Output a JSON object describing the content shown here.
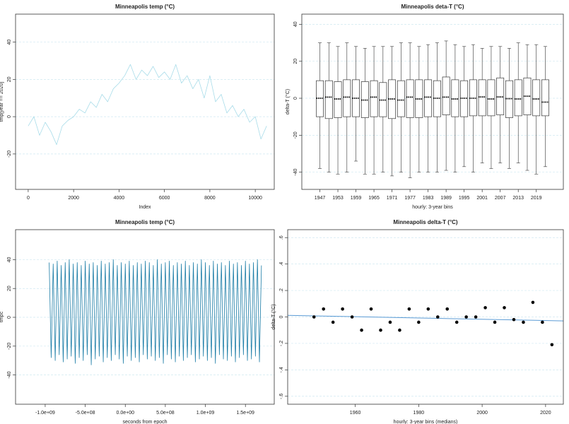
{
  "chart_data": [
    {
      "type": "line",
      "title": "Minneapolis temp (°C)",
      "xlabel": "Index",
      "ylabel": "tmp[year == 2020]",
      "color": "#a8dce9",
      "grid": true,
      "x": [
        0,
        250,
        500,
        750,
        1000,
        1250,
        1500,
        1750,
        2000,
        2250,
        2500,
        2750,
        3000,
        3250,
        3500,
        3750,
        4000,
        4250,
        4500,
        4750,
        5000,
        5250,
        5500,
        5750,
        6000,
        6250,
        6500,
        6750,
        7000,
        7250,
        7500,
        7750,
        8000,
        8250,
        8500,
        8750,
        9000,
        9250,
        9500,
        9750,
        10000,
        10250,
        10500
      ],
      "values": [
        -5,
        0,
        -10,
        -3,
        -8,
        -15,
        -5,
        -2,
        0,
        4,
        2,
        8,
        5,
        12,
        8,
        15,
        18,
        22,
        28,
        20,
        25,
        22,
        27,
        21,
        24,
        20,
        28,
        18,
        22,
        15,
        20,
        10,
        22,
        8,
        12,
        2,
        6,
        0,
        4,
        -3,
        0,
        -12,
        -5
      ],
      "xlim": [
        -557,
        10836
      ],
      "xticks": [
        0,
        2000,
        4000,
        6000,
        8000,
        10000
      ],
      "ylim": [
        -39,
        55
      ],
      "yticks": [
        -20,
        0,
        20,
        40
      ]
    },
    {
      "type": "box",
      "title": "Minneapolis deta-T (°C)",
      "xlabel": "hourly:  3-year bins",
      "ylabel": "delta-T (°C)",
      "color": "#333333",
      "grid": true,
      "categories": [
        "1947",
        null,
        "1953",
        null,
        "1959",
        null,
        "1965",
        null,
        "1971",
        null,
        "1977",
        null,
        "1983",
        null,
        "1989",
        null,
        "1995",
        null,
        "2001",
        null,
        "2007",
        null,
        "2013",
        null,
        "2019",
        null
      ],
      "low": [
        -38,
        -40,
        -41,
        -40,
        -34,
        -41,
        -41,
        -40,
        -42,
        -40,
        -43,
        -40,
        -40,
        -40,
        -39,
        -40,
        -37,
        -40,
        -35,
        -38,
        -35,
        -38,
        -35,
        -39,
        -41,
        -37
      ],
      "q1": [
        -10,
        -11,
        -10.5,
        -10,
        -10,
        -10.5,
        -10,
        -10,
        -11,
        -10,
        -10.5,
        -10.5,
        -10,
        -10,
        -9,
        -10,
        -10,
        -9.5,
        -9.5,
        -9.5,
        -9,
        -10.5,
        -9.5,
        -9,
        -9.5,
        -9.5
      ],
      "median": [
        0,
        0.6,
        -0.4,
        0.6,
        0,
        -1,
        0.6,
        -1,
        -0.4,
        -1,
        0.6,
        -0.4,
        0.6,
        0,
        0.6,
        -0.4,
        0,
        0,
        0.7,
        -0.4,
        0.7,
        -0.2,
        -0.4,
        1.1,
        -0.4,
        -2.1
      ],
      "q3": [
        9.5,
        9.5,
        9,
        10,
        10,
        9,
        9.5,
        8.5,
        10,
        9.5,
        10,
        10,
        10,
        9.5,
        11.5,
        10,
        9.5,
        10,
        10,
        10,
        11,
        9.5,
        10,
        11,
        10,
        10
      ],
      "high": [
        30,
        30,
        28,
        30,
        28,
        27,
        28,
        28,
        28,
        30,
        30,
        28,
        29,
        30,
        31,
        29,
        28,
        29,
        27,
        28,
        28,
        27,
        30,
        29,
        29,
        28
      ],
      "ylim": [
        -49.3,
        45.5
      ],
      "yticks": [
        -40,
        -20,
        0,
        20,
        40
      ]
    },
    {
      "type": "line",
      "title": "Minneapolis temp (°C)",
      "xlabel": "seconds from epoch",
      "ylabel": "tmpc",
      "color": "#1b7ca6",
      "grid": true,
      "x": [
        -950000000.0,
        -925000000.0,
        -900000000.0,
        -875000000.0,
        -850000000.0,
        -825000000.0,
        -800000000.0,
        -775000000.0,
        -750000000.0,
        -725000000.0,
        -700000000.0,
        -675000000.0,
        -650000000.0,
        -625000000.0,
        -600000000.0,
        -575000000.0,
        -550000000.0,
        -525000000.0,
        -500000000.0,
        -475000000.0,
        -450000000.0,
        -425000000.0,
        -400000000.0,
        -375000000.0,
        -350000000.0,
        -325000000.0,
        -300000000.0,
        -275000000.0,
        -250000000.0,
        -225000000.0,
        -200000000.0,
        -175000000.0,
        -150000000.0,
        -125000000.0,
        -100000000.0,
        -75000000.0,
        -50000000.0,
        -25000000.0,
        0,
        25000000.0,
        50000000.0,
        75000000.0,
        100000000.0,
        125000000.0,
        150000000.0,
        175000000.0,
        200000000.0,
        225000000.0,
        250000000.0,
        275000000.0,
        300000000.0,
        325000000.0,
        350000000.0,
        375000000.0,
        400000000.0,
        425000000.0,
        450000000.0,
        475000000.0,
        500000000.0,
        525000000.0,
        550000000.0,
        575000000.0,
        600000000.0,
        625000000.0,
        650000000.0,
        675000000.0,
        700000000.0,
        725000000.0,
        750000000.0,
        775000000.0,
        800000000.0,
        825000000.0,
        850000000.0,
        875000000.0,
        900000000.0,
        925000000.0,
        950000000.0,
        975000000.0,
        1000000000.0,
        1025000000.0,
        1050000000.0,
        1075000000.0,
        1100000000.0,
        1125000000.0,
        1150000000.0,
        1175000000.0,
        1200000000.0,
        1225000000.0,
        1250000000.0,
        1275000000.0,
        1300000000.0,
        1325000000.0,
        1350000000.0,
        1375000000.0,
        1400000000.0,
        1425000000.0,
        1450000000.0,
        1475000000.0,
        1500000000.0,
        1525000000.0,
        1550000000.0,
        1575000000.0,
        1600000000.0,
        1625000000.0,
        1650000000.0,
        1675000000.0,
        1700000000.0
      ],
      "values": [
        38,
        -28,
        37,
        -30,
        39,
        -26,
        36,
        -31,
        38,
        -29,
        40,
        -27,
        37,
        -32,
        38,
        -28,
        36,
        -30,
        39,
        -26,
        37,
        -33,
        38,
        -29,
        36,
        -27,
        39,
        -31,
        37,
        -28,
        38,
        -30,
        40,
        -26,
        36,
        -29,
        38,
        -32,
        37,
        -27,
        39,
        -30,
        36,
        -28,
        38,
        -31,
        37,
        -26,
        39,
        -29,
        38,
        -27,
        36,
        -30,
        40,
        -28,
        37,
        -32,
        38,
        -26,
        39,
        -29,
        36,
        -31,
        38,
        -27,
        37,
        -30,
        39,
        -28,
        36,
        -26,
        38,
        -31,
        37,
        -29,
        40,
        -27,
        38,
        -30,
        36,
        -28,
        39,
        -32,
        37,
        -26,
        38,
        -29,
        36,
        -30,
        39,
        -27,
        37,
        -31,
        38,
        -28,
        36,
        -26,
        39,
        -30,
        37,
        -29,
        38,
        -27,
        40,
        -31,
        36
      ],
      "xlim": [
        -1370000000.0,
        1860000000.0
      ],
      "xticks": [
        {
          "value": -1000000000.0,
          "label": "-1.0e+09"
        },
        {
          "value": -500000000.0,
          "label": "-5.0e+08"
        },
        {
          "value": 0,
          "label": "0.0e+00"
        },
        {
          "value": 500000000.0,
          "label": "5.0e+08"
        },
        {
          "value": 1000000000.0,
          "label": "1.0e+09"
        },
        {
          "value": 1500000000.0,
          "label": "1.5e+09"
        }
      ],
      "ylim": [
        -60.3,
        60.8
      ],
      "yticks": [
        -40,
        -20,
        0,
        20,
        40
      ]
    },
    {
      "type": "scatter",
      "title": "Minneapolis delta-T (°C)",
      "xlabel": "hourly:  3-year bins (medians)",
      "ylabel": "delta-T (°C)",
      "color": "#000000",
      "grid": true,
      "x": [
        1947,
        1950,
        1953,
        1956,
        1959,
        1962,
        1965,
        1968,
        1971,
        1974,
        1977,
        1980,
        1983,
        1986,
        1989,
        1992,
        1995,
        1998,
        2001,
        2004,
        2007,
        2010,
        2013,
        2016,
        2019,
        2022
      ],
      "values": [
        0,
        0.06,
        -0.04,
        0.06,
        0,
        -0.1,
        0.06,
        -0.1,
        -0.04,
        -0.1,
        0.06,
        -0.04,
        0.06,
        0,
        0.06,
        -0.04,
        0,
        0,
        0.07,
        -0.04,
        0.07,
        -0.02,
        -0.04,
        0.11,
        -0.04,
        -0.21
      ],
      "trend": {
        "color": "#5b9bd5",
        "x": [
          1938.7,
          2025.6
        ],
        "values": [
          0.012,
          -0.03
        ]
      },
      "xlim": [
        1938.7,
        2025.6
      ],
      "xticks": [
        1960,
        1980,
        2000,
        2020
      ],
      "ylim": [
        -0.66,
        0.66
      ],
      "yticks": [
        {
          "value": -0.6,
          "label": "-.6"
        },
        {
          "value": -0.4,
          "label": "-.4"
        },
        {
          "value": -0.2,
          "label": "-.2"
        },
        0,
        {
          "value": 0.2,
          "label": ".2"
        },
        {
          "value": 0.4,
          "label": ".4"
        },
        {
          "value": 0.6,
          "label": ".6"
        }
      ]
    }
  ]
}
